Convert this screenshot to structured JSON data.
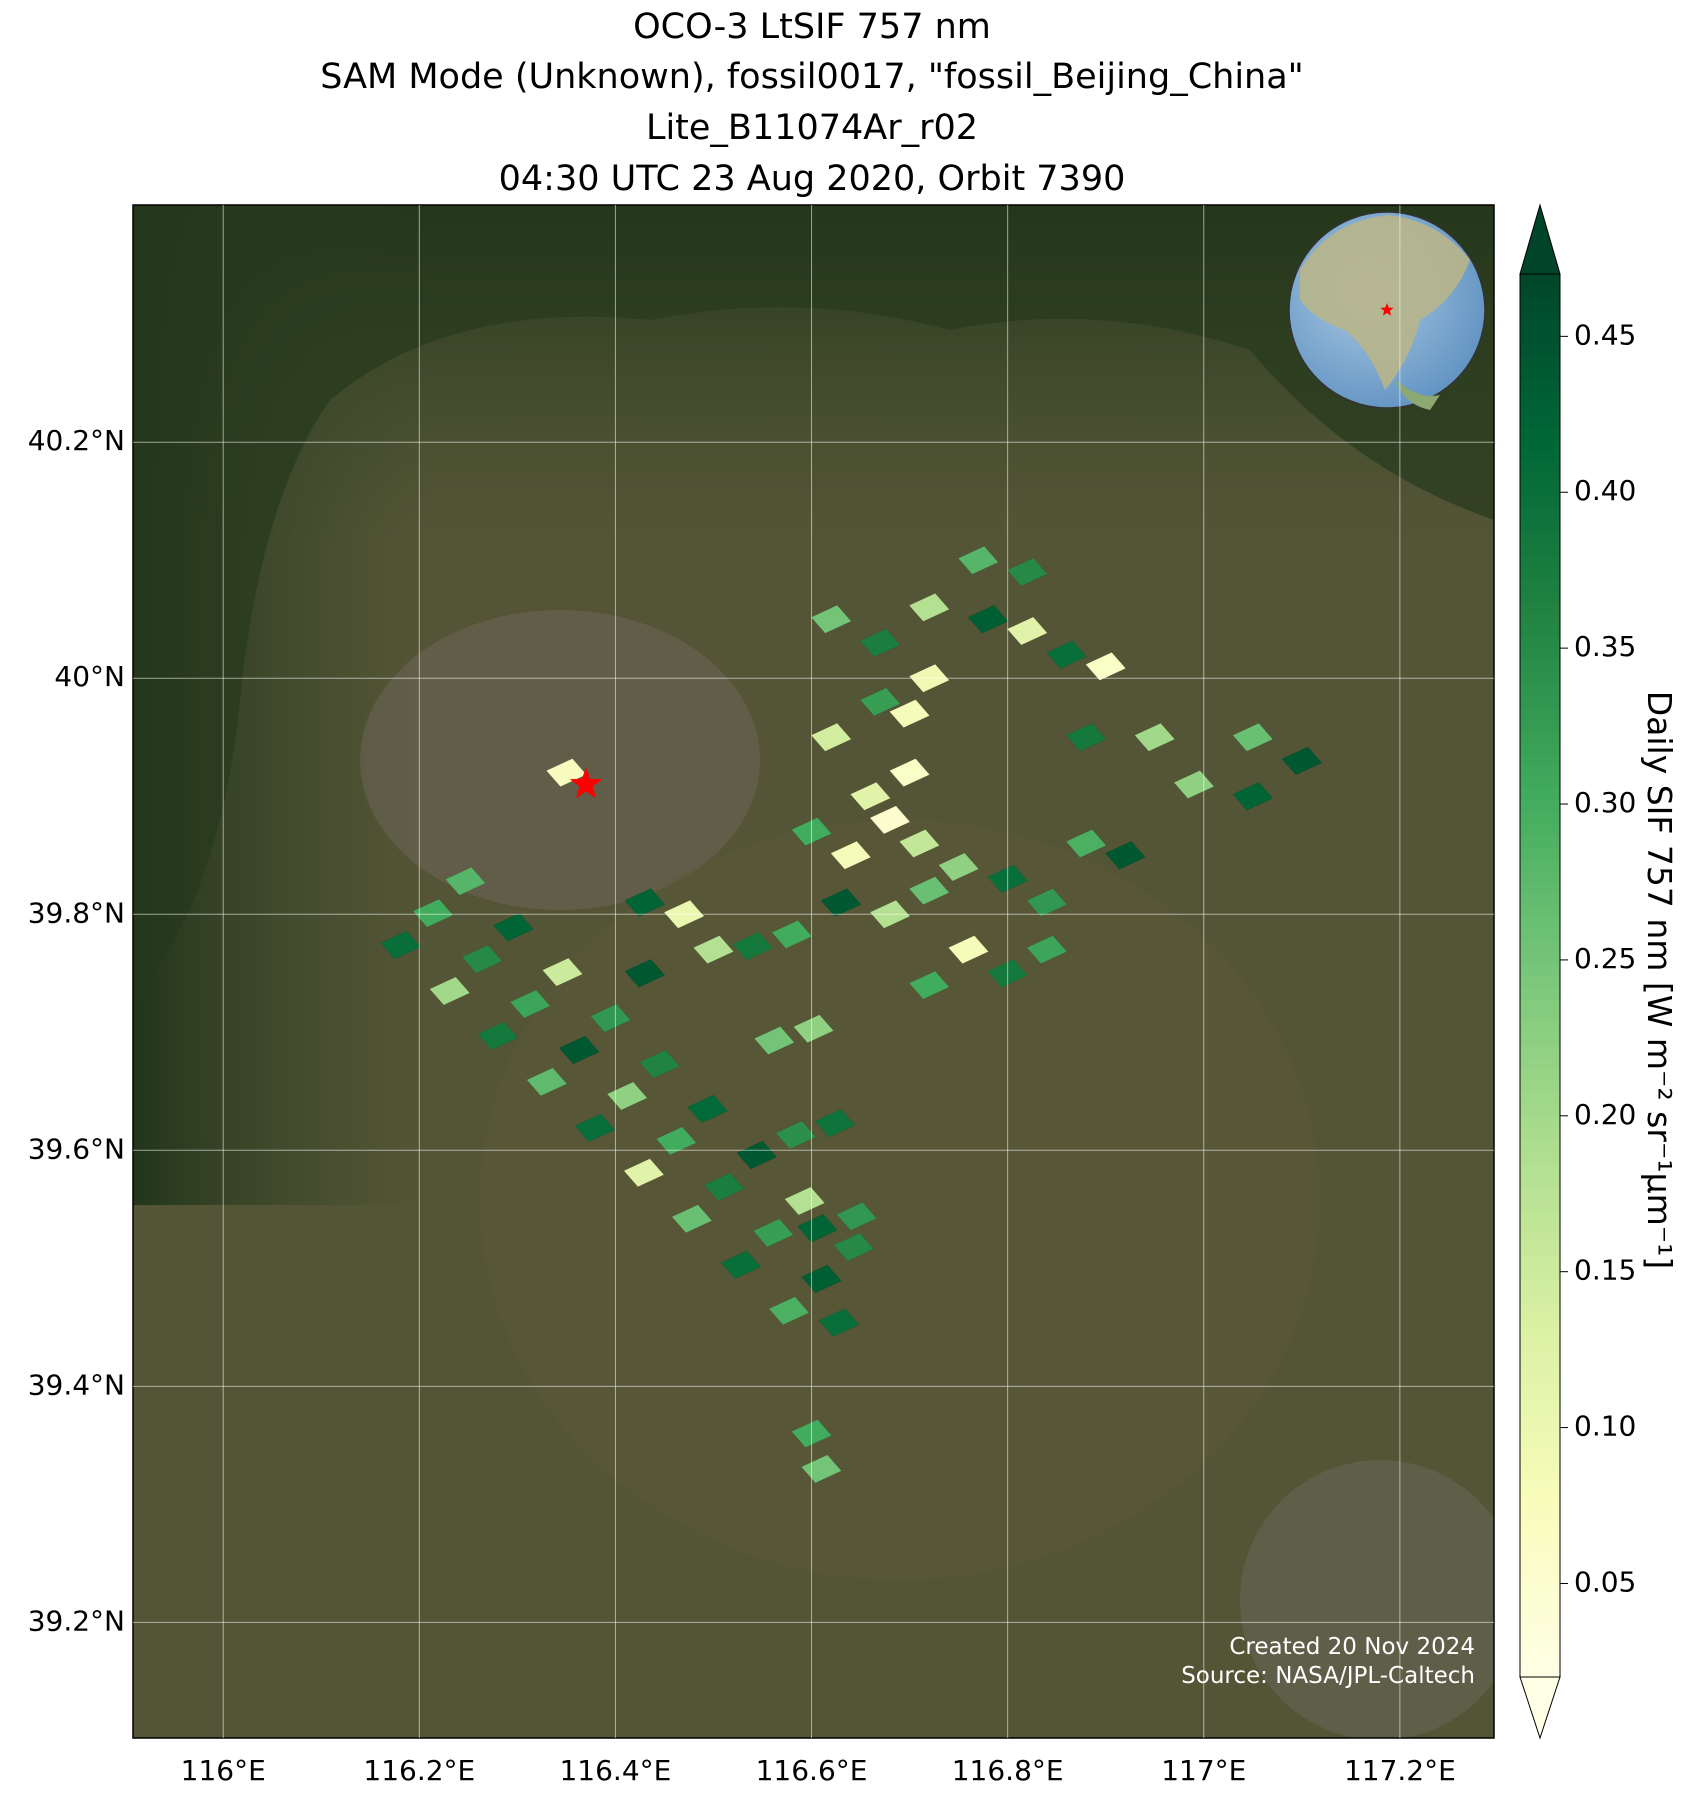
{
  "chart_data": {
    "type": "map",
    "title": [
      "OCO-3 LtSIF 757 nm",
      "SAM Mode (Unknown), fossil0017, \"fossil_Beijing_China\"",
      "Lite_B11074Ar_r02",
      "04:30 UTC 23 Aug 2020, Orbit 7390"
    ],
    "colorbar_label": "Daily SIF 757 nm [W m⁻² sr⁻¹μm⁻¹]",
    "credits": [
      "Created 20 Nov 2024",
      "Source: NASA/JPL-Caltech"
    ],
    "xlim": [
      115.908,
      117.296
    ],
    "ylim": [
      39.102,
      40.401
    ],
    "xticks": [
      {
        "value": 116,
        "label": "116°E"
      },
      {
        "value": 116.2,
        "label": "116.2°E"
      },
      {
        "value": 116.4,
        "label": "116.4°E"
      },
      {
        "value": 116.6,
        "label": "116.6°E"
      },
      {
        "value": 116.8,
        "label": "116.8°E"
      },
      {
        "value": 117,
        "label": "117°E"
      },
      {
        "value": 117.2,
        "label": "117.2°E"
      }
    ],
    "yticks": [
      {
        "value": 39.2,
        "label": "39.2°N"
      },
      {
        "value": 39.4,
        "label": "39.4°N"
      },
      {
        "value": 39.6,
        "label": "39.6°N"
      },
      {
        "value": 39.8,
        "label": "39.8°N"
      },
      {
        "value": 40,
        "label": "40°N"
      },
      {
        "value": 40.2,
        "label": "40.2°N"
      }
    ],
    "grid": true,
    "clim": [
      0.02,
      0.47
    ],
    "cticks": [
      0.05,
      {
        "value": 0.1,
        "label": "0.10"
      },
      0.15,
      {
        "value": 0.2,
        "label": "0.20"
      },
      0.25,
      {
        "value": 0.3,
        "label": "0.30"
      },
      0.35,
      {
        "value": 0.4,
        "label": "0.40"
      },
      0.45
    ],
    "colors": [
      "#ffffe5",
      "#f7fcb9",
      "#d9f0a3",
      "#addd8e",
      "#78c679",
      "#41ab5d",
      "#238443",
      "#006837",
      "#004529"
    ],
    "target": {
      "lon": 116.37,
      "lat": 39.91,
      "color": "#ff0000"
    },
    "cells": {
      "lon": [
        116.214,
        116.181,
        116.247,
        116.264,
        116.231,
        116.296,
        116.313,
        116.28,
        116.346,
        116.363,
        116.33,
        116.395,
        116.412,
        116.379,
        116.445,
        116.462,
        116.429,
        116.494,
        116.511,
        116.478,
        116.544,
        116.561,
        116.528,
        116.593,
        116.61,
        116.577,
        116.643,
        116.54,
        116.562,
        116.584,
        116.606,
        116.628,
        116.58,
        116.602,
        116.624,
        116.646,
        116.62,
        116.67,
        116.72,
        116.67,
        116.72,
        116.78,
        116.82,
        116.86,
        116.9,
        116.82,
        116.77,
        116.7,
        116.62,
        116.88,
        116.95,
        117.05,
        117.1,
        117.05,
        116.99,
        116.6,
        116.64,
        116.68,
        116.71,
        116.75,
        116.63,
        116.68,
        116.72,
        116.8,
        116.84,
        116.88,
        116.92,
        116.76,
        116.8,
        116.84,
        116.72,
        116.66,
        116.7,
        116.43,
        116.43,
        116.35,
        116.47,
        116.5,
        116.6,
        116.61
      ],
      "lat": [
        39.801,
        39.774,
        39.828,
        39.762,
        39.735,
        39.789,
        39.724,
        39.697,
        39.751,
        39.685,
        39.658,
        39.712,
        39.646,
        39.619,
        39.673,
        39.608,
        39.581,
        39.635,
        39.569,
        39.542,
        39.596,
        39.53,
        39.503,
        39.557,
        39.491,
        39.464,
        39.518,
        39.773,
        39.693,
        39.613,
        39.534,
        39.454,
        39.783,
        39.703,
        39.623,
        39.544,
        40.05,
        40.03,
        40.0,
        39.98,
        40.06,
        40.05,
        40.04,
        40.02,
        40.01,
        40.09,
        40.1,
        39.97,
        39.95,
        39.95,
        39.95,
        39.95,
        39.93,
        39.9,
        39.91,
        39.87,
        39.85,
        39.88,
        39.86,
        39.84,
        39.81,
        39.8,
        39.82,
        39.83,
        39.81,
        39.86,
        39.85,
        39.77,
        39.75,
        39.77,
        39.74,
        39.9,
        39.92,
        39.81,
        39.75,
        39.92,
        39.8,
        39.77,
        39.36,
        39.33
      ],
      "values": [
        0.3,
        0.4,
        0.28,
        0.35,
        0.2,
        0.42,
        0.31,
        0.38,
        0.15,
        0.44,
        0.27,
        0.33,
        0.22,
        0.4,
        0.36,
        0.3,
        0.12,
        0.41,
        0.37,
        0.26,
        0.44,
        0.32,
        0.4,
        0.18,
        0.43,
        0.29,
        0.35,
        0.38,
        0.25,
        0.34,
        0.42,
        0.4,
        0.3,
        0.22,
        0.39,
        0.33,
        0.25,
        0.37,
        0.09,
        0.32,
        0.18,
        0.43,
        0.12,
        0.4,
        0.06,
        0.35,
        0.28,
        0.08,
        0.14,
        0.38,
        0.2,
        0.26,
        0.44,
        0.42,
        0.22,
        0.3,
        0.08,
        0.05,
        0.16,
        0.22,
        0.44,
        0.18,
        0.26,
        0.4,
        0.33,
        0.29,
        0.44,
        0.08,
        0.38,
        0.31,
        0.3,
        0.12,
        0.06,
        0.42,
        0.44,
        0.07,
        0.1,
        0.18,
        0.3,
        0.25
      ]
    }
  }
}
